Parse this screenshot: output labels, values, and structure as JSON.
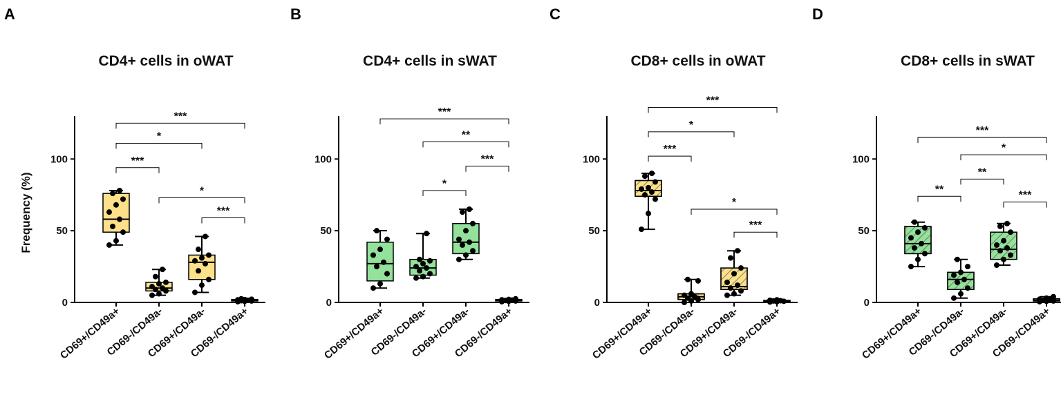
{
  "colors": {
    "yellow": "#FCE08A",
    "green": "#93E19A",
    "axis": "#000000",
    "hatch": "#555555"
  },
  "chart_data": [
    {
      "type": "box",
      "panel": "A",
      "title": "CD4+ cells in oWAT",
      "ylabel": "Frequency (%)",
      "ylim": [
        0,
        130
      ],
      "yticks": [
        0,
        50,
        100
      ],
      "fill": "yellow",
      "hatched": false,
      "categories": [
        "CD69+/CD49a+",
        "CD69-/CD49a-",
        "CD69+/CD49a-",
        "CD69-/CD49a+"
      ],
      "boxes": [
        {
          "min": 40,
          "q1": 49,
          "median": 58,
          "q3": 76,
          "max": 78
        },
        {
          "min": 5,
          "q1": 8,
          "median": 10,
          "q3": 14,
          "max": 23
        },
        {
          "min": 7,
          "q1": 16,
          "median": 28,
          "q3": 33,
          "max": 46
        },
        {
          "min": 0.5,
          "q1": 1,
          "median": 1.5,
          "q3": 2,
          "max": 2.5
        }
      ],
      "points": [
        [
          40,
          43,
          49,
          53,
          58,
          63,
          68,
          72,
          76,
          78
        ],
        [
          5,
          6,
          8,
          9,
          10,
          11,
          13,
          14,
          18,
          23
        ],
        [
          7,
          12,
          16,
          22,
          27,
          29,
          31,
          33,
          37,
          46
        ],
        [
          0.5,
          0.8,
          1,
          1.2,
          1.5,
          1.8,
          2,
          2.2,
          2.5
        ]
      ],
      "comparisons": [
        {
          "from": 0,
          "to": 3,
          "label": "***",
          "y": 125
        },
        {
          "from": 0,
          "to": 2,
          "label": "*",
          "y": 111
        },
        {
          "from": 0,
          "to": 1,
          "label": "***",
          "y": 94
        },
        {
          "from": 1,
          "to": 3,
          "label": "*",
          "y": 73
        },
        {
          "from": 2,
          "to": 3,
          "label": "***",
          "y": 59
        }
      ]
    },
    {
      "type": "box",
      "panel": "B",
      "title": "CD4+ cells in sWAT",
      "ylabel": "",
      "ylim": [
        0,
        130
      ],
      "yticks": [
        0,
        50,
        100
      ],
      "fill": "green",
      "hatched": false,
      "categories": [
        "CD69+/CD49a+",
        "CD69-/CD49a-",
        "CD69+/CD49a-",
        "CD69-/CD49a+"
      ],
      "boxes": [
        {
          "min": 10,
          "q1": 15,
          "median": 27,
          "q3": 42,
          "max": 50
        },
        {
          "min": 17,
          "q1": 19,
          "median": 24,
          "q3": 30,
          "max": 48
        },
        {
          "min": 30,
          "q1": 34,
          "median": 42,
          "q3": 55,
          "max": 65
        },
        {
          "min": 0.5,
          "q1": 1,
          "median": 1.5,
          "q3": 2,
          "max": 2.5
        }
      ],
      "points": [
        [
          10,
          13,
          20,
          25,
          28,
          33,
          37,
          44,
          50
        ],
        [
          17,
          18,
          20,
          22,
          24,
          25,
          27,
          29,
          30,
          48
        ],
        [
          30,
          33,
          36,
          40,
          42,
          44,
          50,
          55,
          63,
          65
        ],
        [
          0.5,
          0.8,
          1,
          1.3,
          1.6,
          1.8,
          2.1,
          2.5
        ]
      ],
      "comparisons": [
        {
          "from": 0,
          "to": 3,
          "label": "***",
          "y": 128
        },
        {
          "from": 1,
          "to": 3,
          "label": "**",
          "y": 112
        },
        {
          "from": 2,
          "to": 3,
          "label": "***",
          "y": 95
        },
        {
          "from": 1,
          "to": 2,
          "label": "*",
          "y": 78
        }
      ]
    },
    {
      "type": "box",
      "panel": "C",
      "title": "CD8+ cells in oWAT",
      "ylabel": "",
      "ylim": [
        0,
        130
      ],
      "yticks": [
        0,
        50,
        100
      ],
      "fill": "yellow",
      "hatched": true,
      "categories": [
        "CD69+/CD49a+",
        "CD69-/CD49a-",
        "CD69+/CD49a-",
        "CD69-/CD49a+"
      ],
      "boxes": [
        {
          "min": 51,
          "q1": 74,
          "median": 78,
          "q3": 85,
          "max": 90
        },
        {
          "min": 0,
          "q1": 2,
          "median": 4,
          "q3": 6,
          "max": 16
        },
        {
          "min": 5,
          "q1": 9,
          "median": 11,
          "q3": 24,
          "max": 36
        },
        {
          "min": 0.3,
          "q1": 0.6,
          "median": 1,
          "q3": 1.4,
          "max": 1.8
        }
      ],
      "points": [
        [
          51,
          62,
          72,
          75,
          77,
          79,
          80,
          84,
          88,
          90
        ],
        [
          0,
          1,
          2,
          3,
          4,
          5,
          6,
          15,
          16
        ],
        [
          5,
          6,
          8,
          10,
          12,
          14,
          20,
          24,
          31,
          36
        ],
        [
          0.3,
          0.5,
          0.8,
          1,
          1.2,
          1.5,
          1.8
        ]
      ],
      "comparisons": [
        {
          "from": 0,
          "to": 3,
          "label": "***",
          "y": 136
        },
        {
          "from": 0,
          "to": 2,
          "label": "*",
          "y": 119
        },
        {
          "from": 0,
          "to": 1,
          "label": "***",
          "y": 102
        },
        {
          "from": 1,
          "to": 3,
          "label": "*",
          "y": 65
        },
        {
          "from": 2,
          "to": 3,
          "label": "***",
          "y": 49
        }
      ]
    },
    {
      "type": "box",
      "panel": "D",
      "title": "CD8+ cells in sWAT",
      "ylabel": "",
      "ylim": [
        0,
        130
      ],
      "yticks": [
        0,
        50,
        100
      ],
      "fill": "green",
      "hatched": true,
      "categories": [
        "CD69+/CD49a+",
        "CD69-/CD49a-",
        "CD69+/CD49a-",
        "CD69-/CD49a+"
      ],
      "boxes": [
        {
          "min": 25,
          "q1": 34,
          "median": 41,
          "q3": 53,
          "max": 56
        },
        {
          "min": 3,
          "q1": 9,
          "median": 16,
          "q3": 21,
          "max": 30
        },
        {
          "min": 26,
          "q1": 30,
          "median": 37,
          "q3": 49,
          "max": 55
        },
        {
          "min": 0.5,
          "q1": 1,
          "median": 1.5,
          "q3": 2.5,
          "max": 4
        }
      ],
      "points": [
        [
          25,
          30,
          34,
          38,
          41,
          45,
          49,
          52,
          56
        ],
        [
          3,
          6,
          10,
          14,
          16,
          19,
          21,
          25,
          30
        ],
        [
          26,
          30,
          33,
          36,
          38,
          40,
          43,
          49,
          53,
          55
        ],
        [
          0.5,
          0.8,
          1,
          1.4,
          1.8,
          2.2,
          3,
          4
        ]
      ],
      "comparisons": [
        {
          "from": 0,
          "to": 3,
          "label": "***",
          "y": 115
        },
        {
          "from": 1,
          "to": 3,
          "label": "*",
          "y": 103
        },
        {
          "from": 1,
          "to": 2,
          "label": "**",
          "y": 86
        },
        {
          "from": 0,
          "to": 1,
          "label": "**",
          "y": 74
        },
        {
          "from": 2,
          "to": 3,
          "label": "***",
          "y": 70
        }
      ]
    }
  ]
}
